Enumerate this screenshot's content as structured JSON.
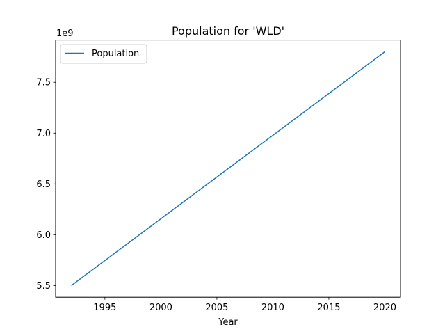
{
  "chart_data": {
    "type": "line",
    "title": "Population for 'WLD'",
    "xlabel": "Year",
    "ylabel": "",
    "y_offset_label": "1e9",
    "xlim": [
      1990.6,
      2021.4
    ],
    "ylim": [
      5.385,
      7.915
    ],
    "xticks": [
      1995,
      2000,
      2005,
      2010,
      2015,
      2020
    ],
    "yticks": [
      5.5,
      6.0,
      6.5,
      7.0,
      7.5
    ],
    "ytick_labels": [
      "5.5",
      "6.0",
      "6.5",
      "7.0",
      "7.5"
    ],
    "legend": "top-left",
    "grid": false,
    "series": [
      {
        "name": "Population",
        "color": "#1f77b4",
        "x": [
          1992,
          2020
        ],
        "y": [
          5.5,
          7.8
        ]
      }
    ]
  }
}
